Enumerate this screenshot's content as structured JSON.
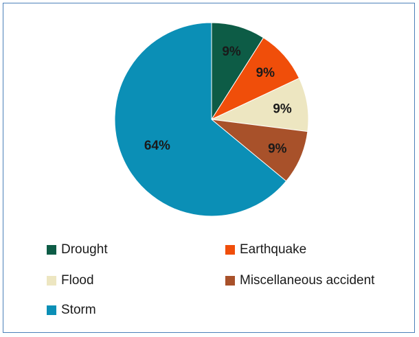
{
  "chart_data": {
    "type": "pie",
    "title": "",
    "slices": [
      {
        "name": "Drought",
        "value": 9,
        "label": "9%",
        "color": "#0d5c46"
      },
      {
        "name": "Earthquake",
        "value": 9,
        "label": "9%",
        "color": "#f04e0a"
      },
      {
        "name": "Flood",
        "value": 9,
        "label": "9%",
        "color": "#ede6c1"
      },
      {
        "name": "Miscellaneous accident",
        "value": 9,
        "label": "9%",
        "color": "#a8512a"
      },
      {
        "name": "Storm",
        "value": 64,
        "label": "64%",
        "color": "#0b8fb6"
      }
    ],
    "start_angle_deg": 0,
    "direction": "clockwise",
    "legend_position": "bottom",
    "legend_columns": 2
  }
}
